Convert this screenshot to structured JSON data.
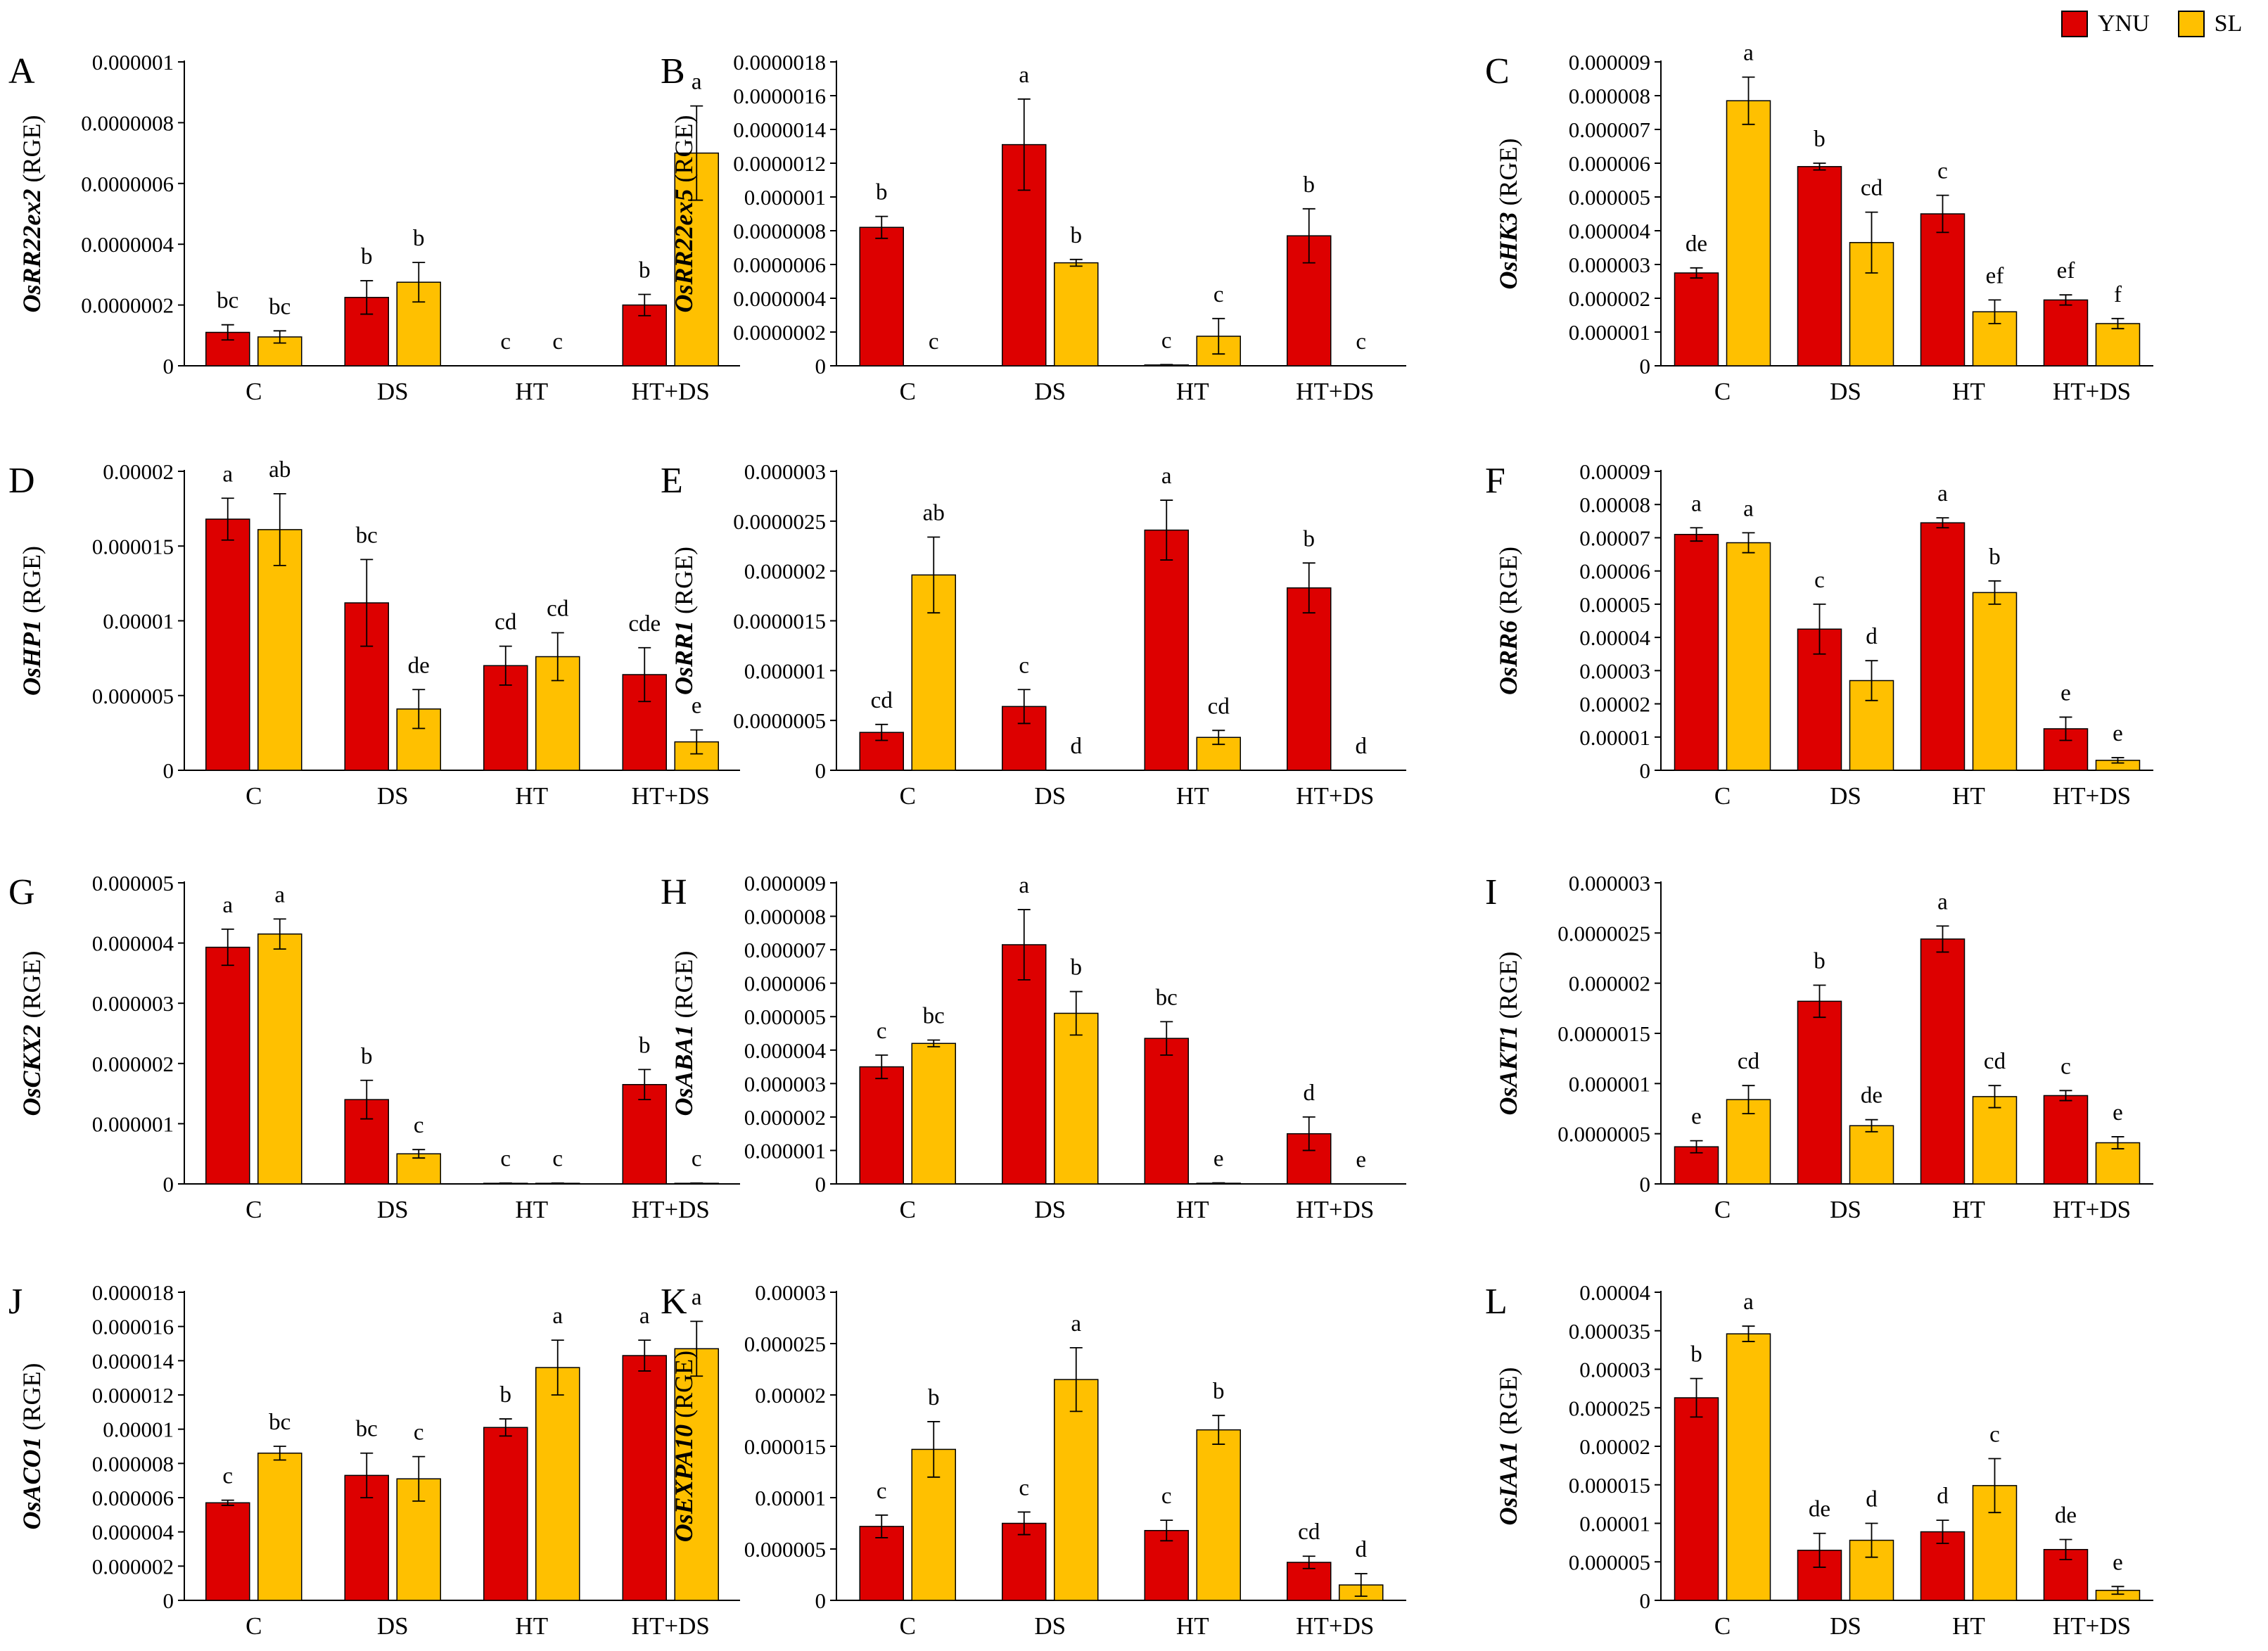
{
  "colors": {
    "YNU": "#DD0000",
    "SL": "#FFC000"
  },
  "legend": {
    "items": [
      {
        "label": "YNU",
        "color": "#DD0000"
      },
      {
        "label": "SL",
        "color": "#FFC000"
      }
    ]
  },
  "chart_data": [
    {
      "type": "bar",
      "panel_label": "A",
      "gene": "OsRR22ex2",
      "unit": "(RGE)",
      "ylim": [
        0,
        1e-06
      ],
      "yticks": [
        "0",
        "0.0000002",
        "0.0000004",
        "0.0000006",
        "0.0000008",
        "0.000001"
      ],
      "categories": [
        "C",
        "DS",
        "HT",
        "HT+DS"
      ],
      "series": [
        {
          "name": "YNU",
          "values": [
            1.1e-07,
            2.25e-07,
            0,
            2e-07
          ],
          "errors": [
            2.5e-08,
            5.5e-08,
            0,
            3.5e-08
          ],
          "letters": [
            "bc",
            "b",
            "c",
            "b"
          ]
        },
        {
          "name": "SL",
          "values": [
            9.5e-08,
            2.75e-07,
            0,
            7e-07
          ],
          "errors": [
            2e-08,
            6.5e-08,
            0,
            1.55e-07
          ],
          "letters": [
            "bc",
            "b",
            "c",
            "a"
          ]
        }
      ]
    },
    {
      "type": "bar",
      "panel_label": "B",
      "gene": "OsRR22ex5",
      "unit": "(RGE)",
      "ylim": [
        0,
        1.8e-06
      ],
      "yticks": [
        "0",
        "0.0000002",
        "0.0000004",
        "0.0000006",
        "0.0000008",
        "0.000001",
        "0.0000012",
        "0.0000014",
        "0.0000016",
        "0.0000018"
      ],
      "categories": [
        "C",
        "DS",
        "HT",
        "HT+DS"
      ],
      "series": [
        {
          "name": "YNU",
          "values": [
            8.2e-07,
            1.31e-06,
            5e-09,
            7.7e-07
          ],
          "errors": [
            6.5e-08,
            2.7e-07,
            2e-09,
            1.6e-07
          ],
          "letters": [
            "b",
            "a",
            "c",
            "b"
          ]
        },
        {
          "name": "SL",
          "values": [
            0,
            6.1e-07,
            1.75e-07,
            0
          ],
          "errors": [
            0,
            2e-08,
            1.05e-07,
            0
          ],
          "letters": [
            "c",
            "b",
            "c",
            "c"
          ]
        }
      ]
    },
    {
      "type": "bar",
      "panel_label": "C",
      "gene": "OsHK3",
      "unit": "(RGE)",
      "ylim": [
        0,
        9e-06
      ],
      "yticks": [
        "0",
        "0.000001",
        "0.000002",
        "0.000003",
        "0.000004",
        "0.000005",
        "0.000006",
        "0.000007",
        "0.000008",
        "0.000009"
      ],
      "categories": [
        "C",
        "DS",
        "HT",
        "HT+DS"
      ],
      "series": [
        {
          "name": "YNU",
          "values": [
            2.75e-06,
            5.9e-06,
            4.5e-06,
            1.95e-06
          ],
          "errors": [
            1.5e-07,
            1e-07,
            5.5e-07,
            1.5e-07
          ],
          "letters": [
            "de",
            "b",
            "c",
            "ef"
          ]
        },
        {
          "name": "SL",
          "values": [
            7.85e-06,
            3.65e-06,
            1.6e-06,
            1.25e-06
          ],
          "errors": [
            7e-07,
            9e-07,
            3.5e-07,
            1.5e-07
          ],
          "letters": [
            "a",
            "cd",
            "ef",
            "f"
          ]
        }
      ]
    },
    {
      "type": "bar",
      "panel_label": "D",
      "gene": "OsHP1",
      "unit": "(RGE)",
      "ylim": [
        0,
        2e-05
      ],
      "yticks": [
        "0",
        "0.000005",
        "0.00001",
        "0.000015",
        "0.00002"
      ],
      "categories": [
        "C",
        "DS",
        "HT",
        "HT+DS"
      ],
      "series": [
        {
          "name": "YNU",
          "values": [
            1.68e-05,
            1.12e-05,
            7e-06,
            6.4e-06
          ],
          "errors": [
            1.4e-06,
            2.9e-06,
            1.3e-06,
            1.8e-06
          ],
          "letters": [
            "a",
            "bc",
            "cd",
            "cde"
          ]
        },
        {
          "name": "SL",
          "values": [
            1.61e-05,
            4.1e-06,
            7.6e-06,
            1.9e-06
          ],
          "errors": [
            2.4e-06,
            1.3e-06,
            1.6e-06,
            8e-07
          ],
          "letters": [
            "ab",
            "de",
            "cd",
            "e"
          ]
        }
      ]
    },
    {
      "type": "bar",
      "panel_label": "E",
      "gene": "OsRR1",
      "unit": "(RGE)",
      "ylim": [
        0,
        3e-06
      ],
      "yticks": [
        "0",
        "0.0000005",
        "0.000001",
        "0.0000015",
        "0.000002",
        "0.0000025",
        "0.000003"
      ],
      "categories": [
        "C",
        "DS",
        "HT",
        "HT+DS"
      ],
      "series": [
        {
          "name": "YNU",
          "values": [
            3.8e-07,
            6.4e-07,
            2.41e-06,
            1.83e-06
          ],
          "errors": [
            8e-08,
            1.7e-07,
            3e-07,
            2.5e-07
          ],
          "letters": [
            "cd",
            "c",
            "a",
            "b"
          ]
        },
        {
          "name": "SL",
          "values": [
            1.96e-06,
            0,
            3.3e-07,
            0
          ],
          "errors": [
            3.8e-07,
            0,
            7e-08,
            0
          ],
          "letters": [
            "ab",
            "d",
            "cd",
            "d"
          ]
        }
      ]
    },
    {
      "type": "bar",
      "panel_label": "F",
      "gene": "OsRR6",
      "unit": "(RGE)",
      "ylim": [
        0,
        9e-05
      ],
      "yticks": [
        "0",
        "0.00001",
        "0.00002",
        "0.00003",
        "0.00004",
        "0.00005",
        "0.00006",
        "0.00007",
        "0.00008",
        "0.00009"
      ],
      "categories": [
        "C",
        "DS",
        "HT",
        "HT+DS"
      ],
      "series": [
        {
          "name": "YNU",
          "values": [
            7.1e-05,
            4.25e-05,
            7.45e-05,
            1.25e-05
          ],
          "errors": [
            2e-06,
            7.5e-06,
            1.5e-06,
            3.5e-06
          ],
          "letters": [
            "a",
            "c",
            "a",
            "e"
          ]
        },
        {
          "name": "SL",
          "values": [
            6.85e-05,
            2.7e-05,
            5.35e-05,
            3e-06
          ],
          "errors": [
            3e-06,
            6e-06,
            3.5e-06,
            8e-07
          ],
          "letters": [
            "a",
            "d",
            "b",
            "e"
          ]
        }
      ]
    },
    {
      "type": "bar",
      "panel_label": "G",
      "gene": "OsCKX2",
      "unit": "(RGE)",
      "ylim": [
        0,
        5e-06
      ],
      "yticks": [
        "0",
        "0.000001",
        "0.000002",
        "0.000003",
        "0.000004",
        "0.000005"
      ],
      "categories": [
        "C",
        "DS",
        "HT",
        "HT+DS"
      ],
      "series": [
        {
          "name": "YNU",
          "values": [
            3.93e-06,
            1.4e-06,
            1e-08,
            1.65e-06
          ],
          "errors": [
            3e-07,
            3.2e-07,
            5e-09,
            2.5e-07
          ],
          "letters": [
            "a",
            "b",
            "c",
            "b"
          ]
        },
        {
          "name": "SL",
          "values": [
            4.15e-06,
            5e-07,
            1e-08,
            1e-08
          ],
          "errors": [
            2.5e-07,
            7e-08,
            5e-09,
            5e-09
          ],
          "letters": [
            "a",
            "c",
            "c",
            "c"
          ]
        }
      ]
    },
    {
      "type": "bar",
      "panel_label": "H",
      "gene": "OsABA1",
      "unit": "(RGE)",
      "ylim": [
        0,
        9e-06
      ],
      "yticks": [
        "0",
        "0.000001",
        "0.000002",
        "0.000003",
        "0.000004",
        "0.000005",
        "0.000006",
        "0.000007",
        "0.000008",
        "0.000009"
      ],
      "categories": [
        "C",
        "DS",
        "HT",
        "HT+DS"
      ],
      "series": [
        {
          "name": "YNU",
          "values": [
            3.5e-06,
            7.15e-06,
            4.35e-06,
            1.5e-06
          ],
          "errors": [
            3.5e-07,
            1.05e-06,
            5e-07,
            5e-07
          ],
          "letters": [
            "c",
            "a",
            "bc",
            "d"
          ]
        },
        {
          "name": "SL",
          "values": [
            4.2e-06,
            5.1e-06,
            2e-08,
            0
          ],
          "errors": [
            1e-07,
            6.5e-07,
            1e-08,
            0
          ],
          "letters": [
            "bc",
            "b",
            "e",
            "e"
          ]
        }
      ]
    },
    {
      "type": "bar",
      "panel_label": "I",
      "gene": "OsAKT1",
      "unit": "(RGE)",
      "ylim": [
        0,
        3e-06
      ],
      "yticks": [
        "0",
        "0.0000005",
        "0.000001",
        "0.0000015",
        "0.000002",
        "0.0000025",
        "0.000003"
      ],
      "categories": [
        "C",
        "DS",
        "HT",
        "HT+DS"
      ],
      "series": [
        {
          "name": "YNU",
          "values": [
            3.7e-07,
            1.82e-06,
            2.44e-06,
            8.8e-07
          ],
          "errors": [
            6e-08,
            1.6e-07,
            1.3e-07,
            5e-08
          ],
          "letters": [
            "e",
            "b",
            "a",
            "c"
          ]
        },
        {
          "name": "SL",
          "values": [
            8.4e-07,
            5.8e-07,
            8.7e-07,
            4.1e-07
          ],
          "errors": [
            1.4e-07,
            6e-08,
            1.1e-07,
            6e-08
          ],
          "letters": [
            "cd",
            "de",
            "cd",
            "e"
          ]
        }
      ]
    },
    {
      "type": "bar",
      "panel_label": "J",
      "gene": "OsACO1",
      "unit": "(RGE)",
      "ylim": [
        0,
        1.8e-05
      ],
      "yticks": [
        "0",
        "0.000002",
        "0.000004",
        "0.000006",
        "0.000008",
        "0.00001",
        "0.000012",
        "0.000014",
        "0.000016",
        "0.000018"
      ],
      "categories": [
        "C",
        "DS",
        "HT",
        "HT+DS"
      ],
      "series": [
        {
          "name": "YNU",
          "values": [
            5.7e-06,
            7.3e-06,
            1.01e-05,
            1.43e-05
          ],
          "errors": [
            1.5e-07,
            1.3e-06,
            5e-07,
            9e-07
          ],
          "letters": [
            "c",
            "bc",
            "b",
            "a"
          ]
        },
        {
          "name": "SL",
          "values": [
            8.6e-06,
            7.1e-06,
            1.36e-05,
            1.47e-05
          ],
          "errors": [
            4e-07,
            1.3e-06,
            1.6e-06,
            1.6e-06
          ],
          "letters": [
            "bc",
            "c",
            "a",
            "a"
          ]
        }
      ]
    },
    {
      "type": "bar",
      "panel_label": "K",
      "gene": "OsEXPA10",
      "unit": "(RGE)",
      "ylim": [
        0,
        3e-05
      ],
      "yticks": [
        "0",
        "0.000005",
        "0.00001",
        "0.000015",
        "0.00002",
        "0.000025",
        "0.00003"
      ],
      "categories": [
        "C",
        "DS",
        "HT",
        "HT+DS"
      ],
      "series": [
        {
          "name": "YNU",
          "values": [
            7.2e-06,
            7.5e-06,
            6.8e-06,
            3.7e-06
          ],
          "errors": [
            1.1e-06,
            1.1e-06,
            1e-06,
            6e-07
          ],
          "letters": [
            "c",
            "c",
            "c",
            "cd"
          ]
        },
        {
          "name": "SL",
          "values": [
            1.47e-05,
            2.15e-05,
            1.66e-05,
            1.5e-06
          ],
          "errors": [
            2.7e-06,
            3.1e-06,
            1.4e-06,
            1.1e-06
          ],
          "letters": [
            "b",
            "a",
            "b",
            "d"
          ]
        }
      ]
    },
    {
      "type": "bar",
      "panel_label": "L",
      "gene": "OsIAA1",
      "unit": "(RGE)",
      "ylim": [
        0,
        4e-05
      ],
      "yticks": [
        "0",
        "0.000005",
        "0.00001",
        "0.000015",
        "0.00002",
        "0.000025",
        "0.00003",
        "0.000035",
        "0.00004"
      ],
      "categories": [
        "C",
        "DS",
        "HT",
        "HT+DS"
      ],
      "series": [
        {
          "name": "YNU",
          "values": [
            2.63e-05,
            6.5e-06,
            8.9e-06,
            6.6e-06
          ],
          "errors": [
            2.5e-06,
            2.2e-06,
            1.5e-06,
            1.3e-06
          ],
          "letters": [
            "b",
            "de",
            "d",
            "de"
          ]
        },
        {
          "name": "SL",
          "values": [
            3.46e-05,
            7.8e-06,
            1.49e-05,
            1.3e-06
          ],
          "errors": [
            1e-06,
            2.2e-06,
            3.5e-06,
            5e-07
          ],
          "letters": [
            "a",
            "d",
            "c",
            "e"
          ]
        }
      ]
    }
  ]
}
